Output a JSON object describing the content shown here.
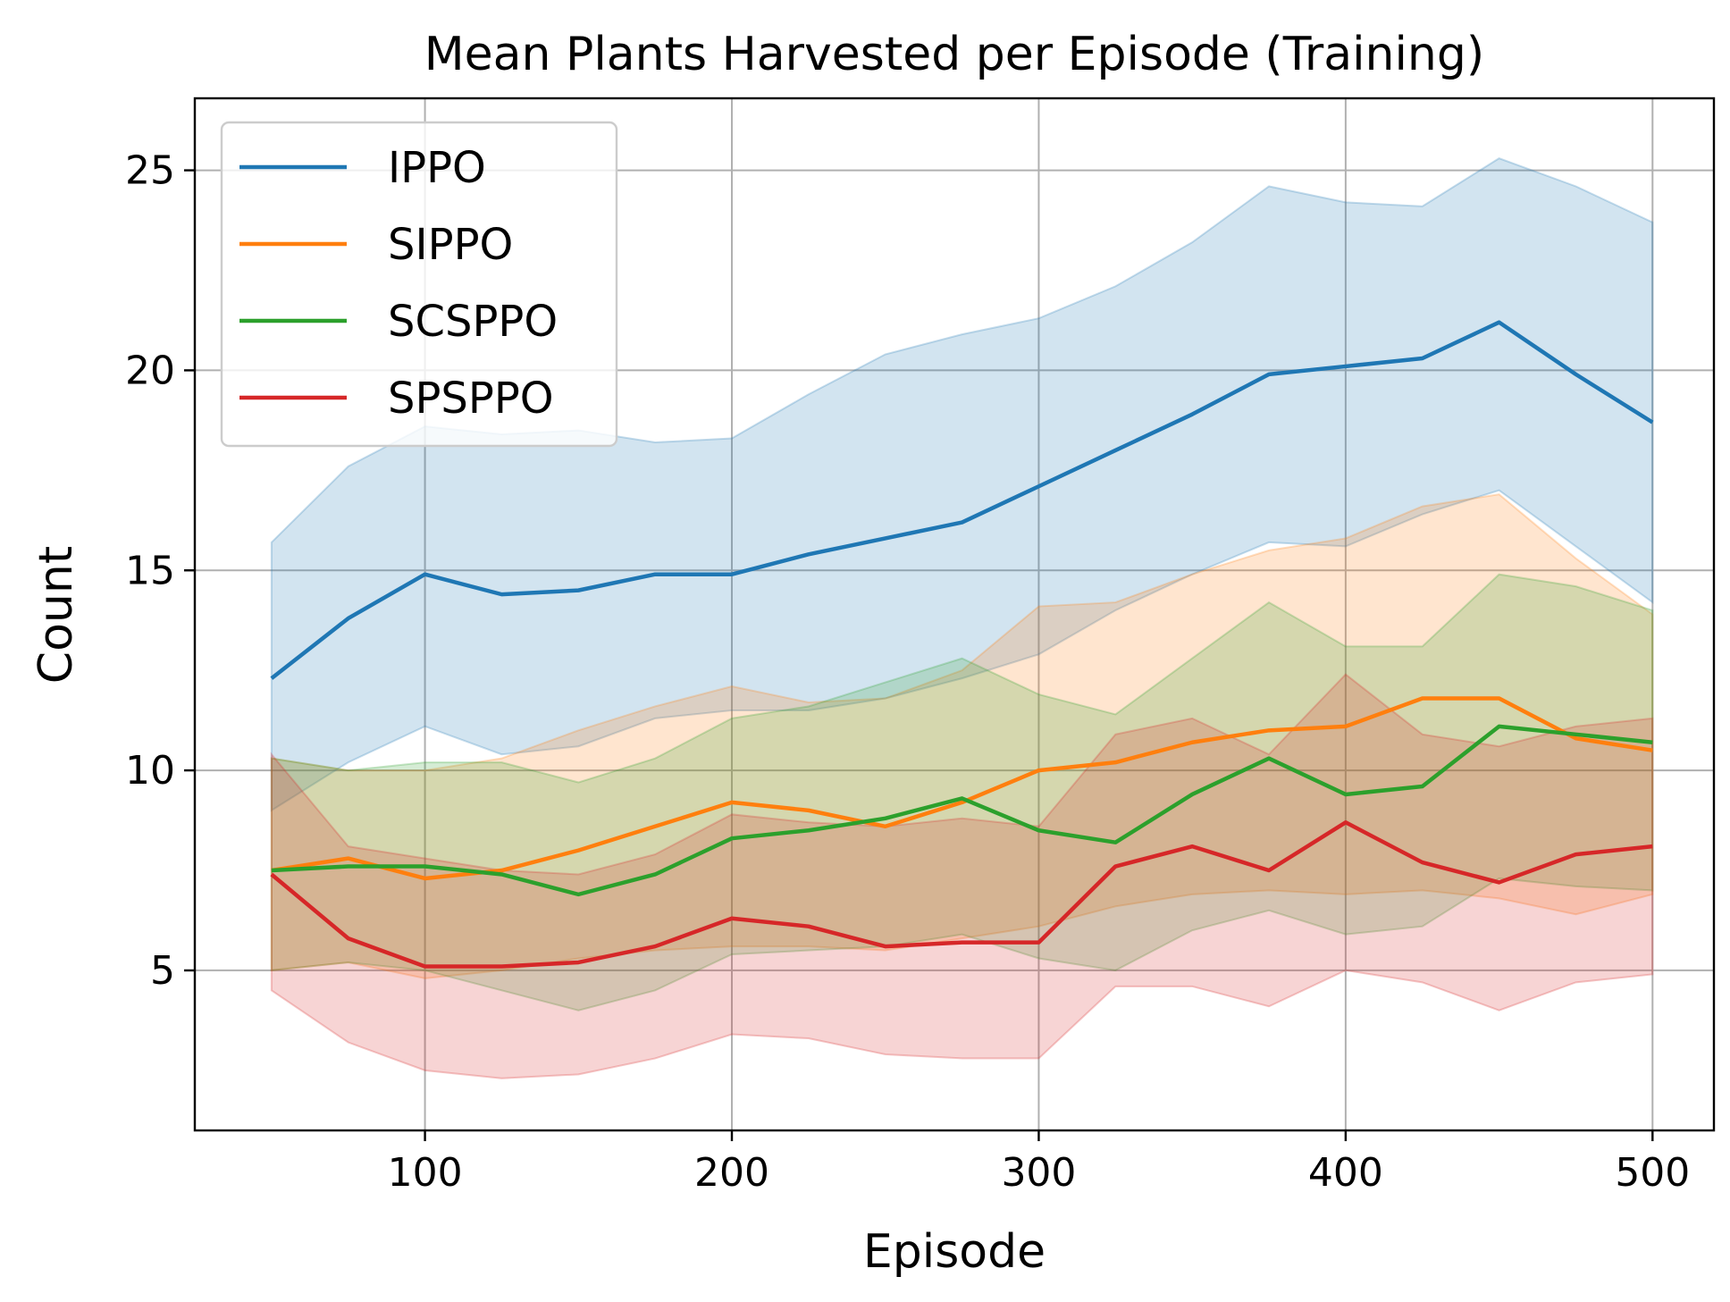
{
  "chart_data": {
    "type": "line",
    "title": "Mean Plants Harvested per Episode (Training)",
    "xlabel": "Episode",
    "ylabel": "Count",
    "xlim": [
      25,
      520
    ],
    "ylim": [
      1.0,
      26.8
    ],
    "xticks": [
      100,
      200,
      300,
      400,
      500
    ],
    "yticks": [
      5,
      10,
      15,
      20,
      25
    ],
    "grid": true,
    "legend_position": "upper-left",
    "x": [
      50,
      75,
      100,
      125,
      150,
      175,
      200,
      225,
      250,
      275,
      300,
      325,
      350,
      375,
      400,
      425,
      450,
      475,
      500
    ],
    "series": [
      {
        "name": "IPPO",
        "color": "#1f77b4",
        "mean": [
          12.3,
          13.8,
          14.9,
          14.4,
          14.5,
          14.9,
          14.9,
          15.4,
          15.8,
          16.2,
          17.1,
          18.0,
          18.9,
          19.9,
          20.1,
          20.3,
          21.2,
          19.9,
          18.7
        ],
        "upper": [
          15.7,
          17.6,
          18.6,
          18.4,
          18.5,
          18.2,
          18.3,
          19.4,
          20.4,
          20.9,
          21.3,
          22.1,
          23.2,
          24.6,
          24.2,
          24.1,
          25.3,
          24.6,
          23.7
        ],
        "lower": [
          9.0,
          10.2,
          11.1,
          10.4,
          10.6,
          11.3,
          11.5,
          11.5,
          11.8,
          12.3,
          12.9,
          14.0,
          14.9,
          15.7,
          15.6,
          16.4,
          17.0,
          15.6,
          14.2
        ]
      },
      {
        "name": "SIPPO",
        "color": "#ff7f0e",
        "mean": [
          7.5,
          7.8,
          7.3,
          7.5,
          8.0,
          8.6,
          9.2,
          9.0,
          8.6,
          9.2,
          10.0,
          10.2,
          10.7,
          11.0,
          11.1,
          11.8,
          11.8,
          10.8,
          10.5
        ],
        "upper": [
          10.3,
          10.0,
          10.0,
          10.3,
          11.0,
          11.6,
          12.1,
          11.7,
          11.8,
          12.5,
          14.1,
          14.2,
          14.9,
          15.5,
          15.8,
          16.6,
          16.9,
          15.3,
          13.9
        ],
        "lower": [
          5.0,
          5.2,
          4.8,
          5.0,
          5.3,
          5.5,
          5.6,
          5.6,
          5.5,
          5.8,
          6.1,
          6.6,
          6.9,
          7.0,
          6.9,
          7.0,
          6.8,
          6.4,
          6.9
        ]
      },
      {
        "name": "SCSPPO",
        "color": "#2ca02c",
        "mean": [
          7.5,
          7.6,
          7.6,
          7.4,
          6.9,
          7.4,
          8.3,
          8.5,
          8.8,
          9.3,
          8.5,
          8.2,
          9.4,
          10.3,
          9.4,
          9.6,
          11.1,
          10.9,
          10.7
        ],
        "upper": [
          10.3,
          10.0,
          10.2,
          10.2,
          9.7,
          10.3,
          11.3,
          11.6,
          12.2,
          12.8,
          11.9,
          11.4,
          12.8,
          14.2,
          13.1,
          13.1,
          14.9,
          14.6,
          14.0
        ],
        "lower": [
          5.0,
          5.2,
          5.0,
          4.5,
          4.0,
          4.5,
          5.4,
          5.5,
          5.6,
          5.9,
          5.3,
          5.0,
          6.0,
          6.5,
          5.9,
          6.1,
          7.3,
          7.1,
          7.0
        ]
      },
      {
        "name": "SPSPPO",
        "color": "#d62728",
        "mean": [
          7.4,
          5.8,
          5.1,
          5.1,
          5.2,
          5.6,
          6.3,
          6.1,
          5.6,
          5.7,
          5.7,
          7.6,
          8.1,
          7.5,
          8.7,
          7.7,
          7.2,
          7.9,
          8.1
        ],
        "upper": [
          10.4,
          8.1,
          7.8,
          7.5,
          7.4,
          7.9,
          8.9,
          8.7,
          8.6,
          8.8,
          8.6,
          10.9,
          11.3,
          10.4,
          12.4,
          10.9,
          10.6,
          11.1,
          11.3
        ],
        "lower": [
          4.5,
          3.2,
          2.5,
          2.3,
          2.4,
          2.8,
          3.4,
          3.3,
          2.9,
          2.8,
          2.8,
          4.6,
          4.6,
          4.1,
          5.0,
          4.7,
          4.0,
          4.7,
          4.9
        ]
      }
    ]
  }
}
